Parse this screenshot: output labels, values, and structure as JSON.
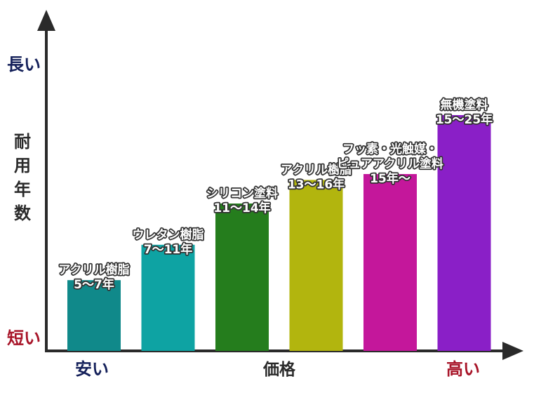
{
  "chart_data": {
    "type": "bar",
    "categories": [
      [
        "アクリル樹脂",
        "5〜7年"
      ],
      [
        "ウレタン樹脂",
        "7〜11年"
      ],
      [
        "シリコン塗料",
        "11〜14年"
      ],
      [
        "アクリル樹脂",
        "13〜16年"
      ],
      [
        "フッ素・光触媒・",
        "ピュアアクリル塗料",
        "15年〜"
      ],
      [
        "無機塗料",
        "15〜25年"
      ]
    ],
    "values": [
      6,
      9,
      12.5,
      14.5,
      15,
      20
    ],
    "colors": [
      "#10898a",
      "#0ea3a3",
      "#257d1d",
      "#b2b50e",
      "#c4179b",
      "#8a1fc7"
    ],
    "xlabel": "価格",
    "ylabel": "耐用年数",
    "x_low": "安い",
    "x_high": "高い",
    "y_low": "短い",
    "y_high": "長い",
    "ylim": [
      0,
      25
    ],
    "grid": false,
    "legend": "none"
  }
}
